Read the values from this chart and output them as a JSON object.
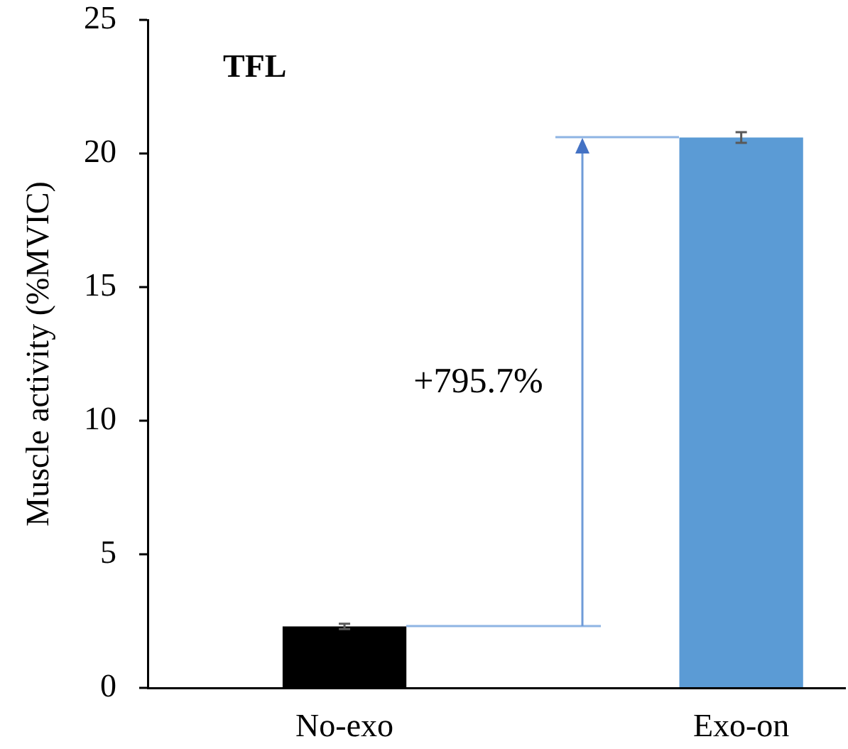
{
  "chart_data": {
    "type": "bar",
    "title": "TFL",
    "ylabel": "Muscle activity (%MVIC)",
    "categories": [
      "No-exo",
      "Exo-on"
    ],
    "values": [
      2.3,
      20.6
    ],
    "colors": [
      "#000000",
      "#5b9bd5"
    ],
    "errors": [
      0.1,
      0.2
    ],
    "ylim": [
      0,
      25
    ],
    "yticks": [
      0,
      5,
      10,
      15,
      20,
      25
    ],
    "annotations": [
      "+795.7%"
    ]
  }
}
